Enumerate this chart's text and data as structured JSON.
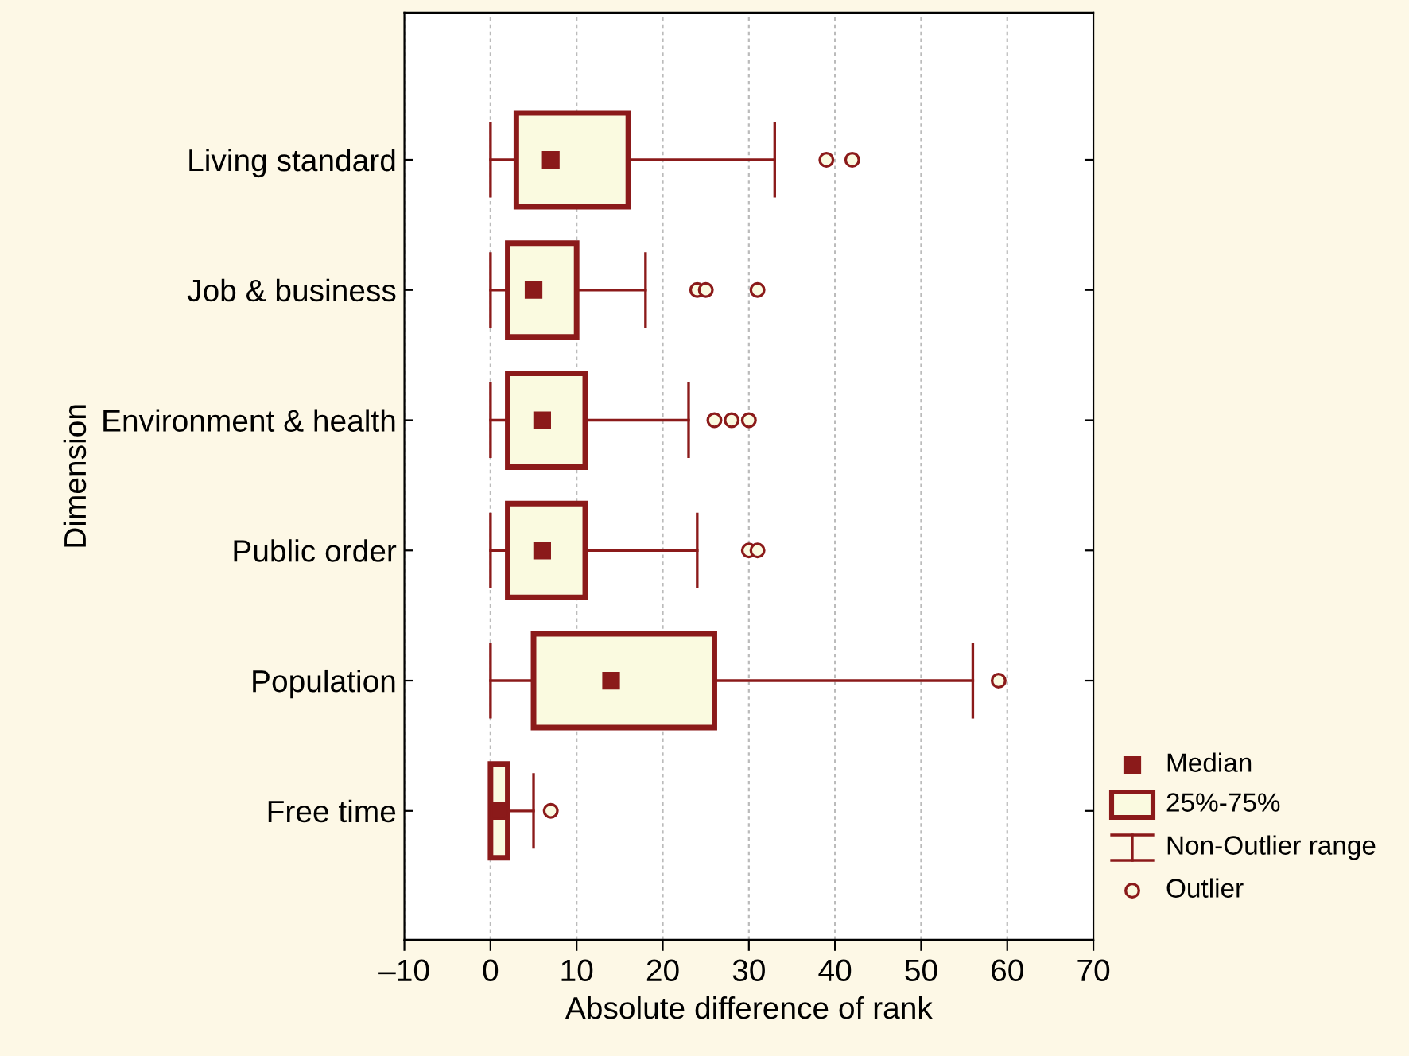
{
  "chart_data": {
    "type": "box",
    "orientation": "horizontal",
    "categories": [
      "Living standard",
      "Job & business",
      "Environment & health",
      "Public order",
      "Population",
      "Free time"
    ],
    "xlabel": "Absolute difference of rank",
    "ylabel": "Dimension",
    "xlim": [
      -10,
      70
    ],
    "xticks": [
      {
        "value": -10,
        "label": "–10"
      },
      0,
      10,
      20,
      30,
      40,
      50,
      60,
      70
    ],
    "grid": "x",
    "annotations": [
      "Median",
      "25%-75%",
      "Non-Outlier range",
      "Outlier"
    ],
    "series": [
      {
        "color": "#8b1a1a",
        "boxes": [
          {
            "low": 0,
            "q1": 3,
            "median": 7,
            "q3": 16,
            "high": 33,
            "outliers": [
              39,
              42
            ]
          },
          {
            "low": 0,
            "q1": 2,
            "median": 5,
            "q3": 10,
            "high": 18,
            "outliers": [
              24,
              25,
              31
            ]
          },
          {
            "low": 0,
            "q1": 2,
            "median": 6,
            "q3": 11,
            "high": 23,
            "outliers": [
              26,
              28,
              30
            ]
          },
          {
            "low": 0,
            "q1": 2,
            "median": 6,
            "q3": 11,
            "high": 24,
            "outliers": [
              30,
              31
            ]
          },
          {
            "low": 0,
            "q1": 5,
            "median": 14,
            "q3": 26,
            "high": 56,
            "outliers": [
              59
            ]
          },
          {
            "low": 0,
            "q1": 0,
            "median": 1,
            "q3": 2,
            "high": 5,
            "outliers": [
              7
            ]
          }
        ]
      }
    ]
  }
}
